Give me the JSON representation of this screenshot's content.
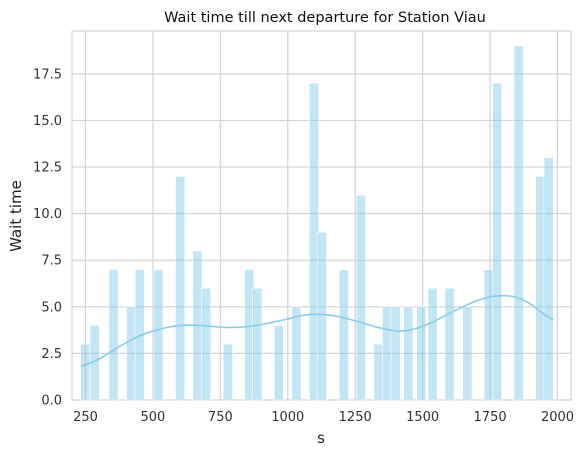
{
  "chart_data": {
    "type": "bar",
    "title": "Wait time till next departure for Station Viau",
    "xlabel": "s",
    "ylabel": "Wait time",
    "xlim": [
      200,
      2050
    ],
    "ylim": [
      0,
      19.8
    ],
    "x_ticks": [
      250,
      500,
      750,
      1000,
      1250,
      1500,
      1750,
      2000
    ],
    "y_ticks": [
      0.0,
      2.5,
      5.0,
      7.5,
      10.0,
      12.5,
      15.0,
      17.5
    ],
    "y_tick_labels": [
      "0.0",
      "2.5",
      "5.0",
      "7.5",
      "10.0",
      "12.5",
      "15.0",
      "17.5"
    ],
    "grid": true,
    "bar_color": "#87ceeb",
    "bar_width": 34.6,
    "bars": [
      {
        "x": 249,
        "value": 3
      },
      {
        "x": 284,
        "value": 4
      },
      {
        "x": 354,
        "value": 7
      },
      {
        "x": 419,
        "value": 5
      },
      {
        "x": 451,
        "value": 7
      },
      {
        "x": 520,
        "value": 7
      },
      {
        "x": 601,
        "value": 12
      },
      {
        "x": 665,
        "value": 8
      },
      {
        "x": 697,
        "value": 6
      },
      {
        "x": 778,
        "value": 3
      },
      {
        "x": 857,
        "value": 7
      },
      {
        "x": 887,
        "value": 6
      },
      {
        "x": 967,
        "value": 4
      },
      {
        "x": 1032,
        "value": 5
      },
      {
        "x": 1097,
        "value": 17
      },
      {
        "x": 1127,
        "value": 9
      },
      {
        "x": 1208,
        "value": 7
      },
      {
        "x": 1271,
        "value": 11
      },
      {
        "x": 1336,
        "value": 3
      },
      {
        "x": 1368,
        "value": 5
      },
      {
        "x": 1400,
        "value": 5
      },
      {
        "x": 1447,
        "value": 5
      },
      {
        "x": 1495,
        "value": 5
      },
      {
        "x": 1537,
        "value": 6
      },
      {
        "x": 1600,
        "value": 6
      },
      {
        "x": 1666,
        "value": 5
      },
      {
        "x": 1745,
        "value": 7
      },
      {
        "x": 1776,
        "value": 17
      },
      {
        "x": 1856,
        "value": 19
      },
      {
        "x": 1936,
        "value": 12
      },
      {
        "x": 1967,
        "value": 13
      }
    ],
    "kde": {
      "x": [
        235,
        300,
        380,
        460,
        540,
        600,
        680,
        760,
        840,
        920,
        1000,
        1060,
        1120,
        1180,
        1250,
        1320,
        1400,
        1450,
        1500,
        1560,
        1620,
        1680,
        1740,
        1800,
        1850,
        1900,
        1950,
        1985
      ],
      "y": [
        1.8,
        2.2,
        2.9,
        3.5,
        3.85,
        4.0,
        4.0,
        3.9,
        3.92,
        4.1,
        4.35,
        4.55,
        4.6,
        4.5,
        4.25,
        3.95,
        3.7,
        3.75,
        3.95,
        4.35,
        4.8,
        5.2,
        5.5,
        5.6,
        5.5,
        5.15,
        4.6,
        4.3
      ],
      "color": "#87ceeb"
    }
  }
}
